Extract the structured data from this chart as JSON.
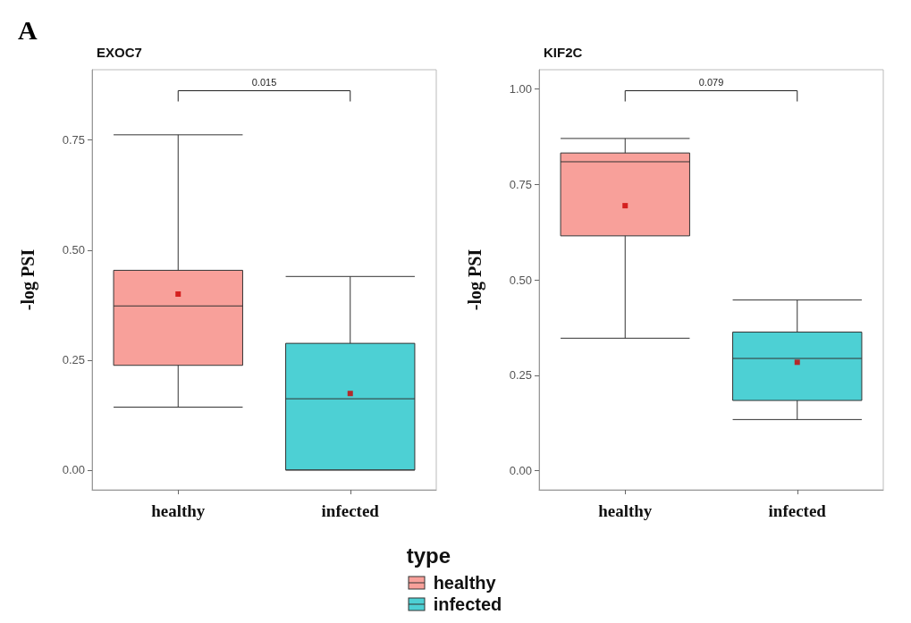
{
  "chart_data": [
    {
      "type": "box",
      "title": "EXOC7",
      "ylabel": "-log PSI",
      "categories": [
        "healthy",
        "infected"
      ],
      "series": [
        {
          "name": "healthy",
          "color": "#f8a09a",
          "boxes": [
            {
              "low": 0.143,
              "q1": 0.238,
              "median": 0.373,
              "q3": 0.454,
              "high": 0.762,
              "mean": 0.4
            },
            null
          ]
        },
        {
          "name": "infected",
          "color": "#4dd0d4",
          "boxes": [
            null,
            {
              "low": 0.0,
              "q1": 0.0,
              "median": 0.162,
              "q3": 0.288,
              "high": 0.44,
              "mean": 0.174
            }
          ]
        }
      ],
      "ylim": [
        -0.045,
        0.91
      ],
      "yticks": [
        {
          "value": 0,
          "label": "0.00"
        },
        {
          "value": 0.25,
          "label": "0.25"
        },
        {
          "value": 0.5,
          "label": "0.50"
        },
        {
          "value": 0.75,
          "label": "0.75"
        }
      ],
      "grid": false,
      "legend": "bottom",
      "legend_title": "type",
      "annotations": [
        "A",
        "0.015"
      ]
    },
    {
      "type": "box",
      "title": "KIF2C",
      "ylabel": "-log PSI",
      "categories": [
        "healthy",
        "infected"
      ],
      "series": [
        {
          "color": "#f8a09a",
          "boxes": [
            {
              "low": 0.347,
              "q1": 0.615,
              "median": 0.809,
              "q3": 0.832,
              "high": 0.87,
              "mean": 0.694
            },
            null
          ]
        },
        {
          "color": "#4dd0d4",
          "boxes": [
            null,
            {
              "low": 0.134,
              "q1": 0.184,
              "median": 0.294,
              "q3": 0.363,
              "high": 0.447,
              "mean": 0.284
            }
          ]
        }
      ],
      "ylim": [
        -0.05,
        1.05
      ],
      "yticks": [
        {
          "value": 0,
          "label": "0.00"
        },
        {
          "value": 0.25,
          "label": "0.25"
        },
        {
          "value": 0.5,
          "label": "0.50"
        },
        {
          "value": 0.75,
          "label": "0.75"
        },
        {
          "value": 1,
          "label": "1.00"
        }
      ],
      "grid": false,
      "annotations": [
        "0.079"
      ]
    }
  ]
}
